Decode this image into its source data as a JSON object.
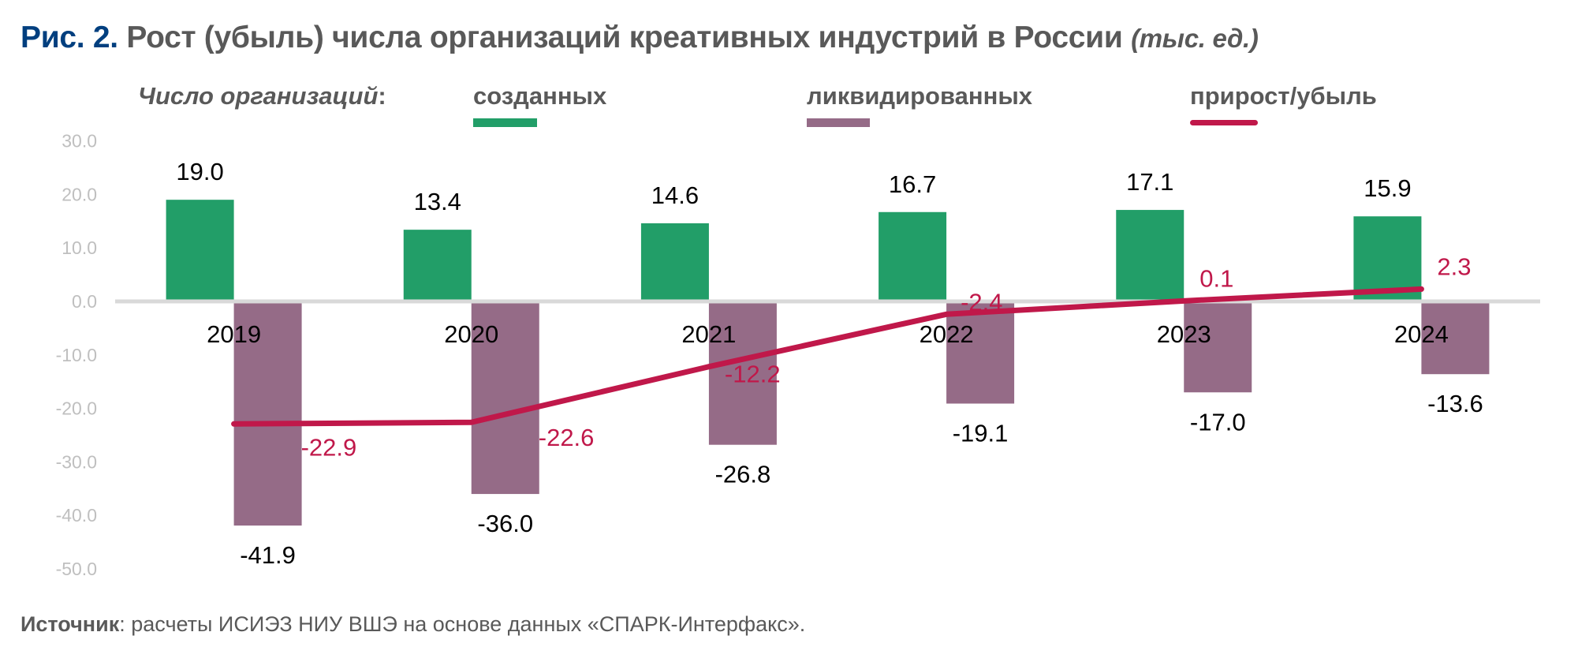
{
  "title": {
    "figure_label": "Рис. 2.",
    "text": "Рост (убыль) числа организаций креативных индустрий в России",
    "units": "(тыс. ед.)"
  },
  "legend": {
    "lead": "Число организаций",
    "lead_colon": ":",
    "items": [
      {
        "label": "созданных",
        "color": "#229E68",
        "shape": "bar"
      },
      {
        "label": "ликвидированных",
        "color": "#956B87",
        "shape": "bar"
      },
      {
        "label": "прирост/убыль",
        "color": "#C0184A",
        "shape": "line"
      }
    ]
  },
  "source": {
    "label": "Источник",
    "text": ": расчеты ИСИЭЗ НИУ ВШЭ на основе данных «СПАРК-Интерфакс»."
  },
  "chart_data": {
    "type": "bar",
    "categories": [
      "2019",
      "2020",
      "2021",
      "2022",
      "2023",
      "2024"
    ],
    "series": [
      {
        "name": "созданных",
        "type": "bar",
        "color": "#229E68",
        "values": [
          19.0,
          13.4,
          14.6,
          16.7,
          17.1,
          15.9
        ],
        "labels": [
          "19.0",
          "13.4",
          "14.6",
          "16.7",
          "17.1",
          "15.9"
        ]
      },
      {
        "name": "ликвидированных",
        "type": "bar",
        "color": "#956B87",
        "values": [
          -41.9,
          -36.0,
          -26.8,
          -19.1,
          -17.0,
          -13.6
        ],
        "labels": [
          "-41.9",
          "-36.0",
          "-26.8",
          "-19.1",
          "-17.0",
          "-13.6"
        ]
      },
      {
        "name": "прирост/убыль",
        "type": "line",
        "color": "#C0184A",
        "values": [
          -22.9,
          -22.6,
          -12.2,
          -2.4,
          0.1,
          2.3
        ],
        "labels": [
          "-22.9",
          "-22.6",
          "-12.2",
          "-2.4",
          "0.1",
          "2.3"
        ]
      }
    ],
    "ylim": [
      -50,
      30
    ],
    "yticks": [
      "30.0",
      "20.0",
      "10.0",
      "0.0",
      "-10.0",
      "-20.0",
      "-30.0",
      "-40.0",
      "-50.0"
    ],
    "ytick_values": [
      30,
      20,
      10,
      0,
      -10,
      -20,
      -30,
      -40,
      -50
    ],
    "grid": false,
    "legend_position": "top"
  }
}
